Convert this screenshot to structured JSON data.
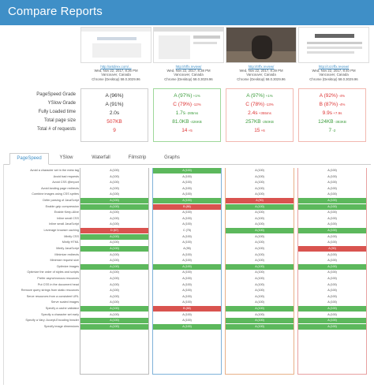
{
  "header": {
    "title": "Compare Reports"
  },
  "reports": [
    {
      "link": "http://artdirex.com/...",
      "date": "Wed, Nov 22, 2017, 8:36 PM",
      "location": "Vancouver, Canada",
      "browser": "Chrome (Desktop) 58.0.3029.96"
    },
    {
      "link": "http://trffx.review/",
      "date": "Wed, Nov 22, 2017, 8:38 PM",
      "location": "Vancouver, Canada",
      "browser": "Chrome (Desktop) 58.0.3029.96"
    },
    {
      "link": "http://trffx.review/",
      "date": "Wed, Nov 22, 2017, 8:39 PM",
      "location": "Vancouver, Canada",
      "browser": "Chrome (Desktop) 58.0.3029.96"
    },
    {
      "link": "http://c4.trffx.review/",
      "date": "Wed, Nov 22, 2017, 8:40 PM",
      "location": "Vancouver, Canada",
      "browser": "Chrome (Desktop) 58.0.3029.96"
    }
  ],
  "summary": {
    "labels": [
      "PageSpeed Grade",
      "YSlow Grade",
      "Fully Loaded time",
      "Total page size",
      "Total # of requests"
    ],
    "columns": [
      [
        {
          "v": "A (96%)",
          "d": ""
        },
        {
          "v": "A (91%)",
          "d": ""
        },
        {
          "v": "2.0s",
          "d": ""
        },
        {
          "v": "507KB",
          "d": ""
        },
        {
          "v": "9",
          "d": ""
        }
      ],
      [
        {
          "v": "A (97%)",
          "d": "+1%",
          "c": "dg"
        },
        {
          "v": "C (79%)",
          "d": "-12%",
          "c": "dr"
        },
        {
          "v": "1.7s",
          "d": "-285ms",
          "c": "dg"
        },
        {
          "v": "81.0KB",
          "d": "-426KB",
          "c": "dg"
        },
        {
          "v": "14",
          "d": "+5",
          "c": "dr"
        }
      ],
      [
        {
          "v": "A (97%)",
          "d": "+1%",
          "c": "dg"
        },
        {
          "v": "C (78%)",
          "d": "-13%",
          "c": "dr"
        },
        {
          "v": "2.4s",
          "d": "+355ms",
          "c": "dr"
        },
        {
          "v": "257KB",
          "d": "-250KB",
          "c": "dg"
        },
        {
          "v": "15",
          "d": "+6",
          "c": "dr"
        }
      ],
      [
        {
          "v": "A (92%)",
          "d": "-4%",
          "c": "dr"
        },
        {
          "v": "B (87%)",
          "d": "-4%",
          "c": "dr"
        },
        {
          "v": "9.9s",
          "d": "+7.9s",
          "c": "dr"
        },
        {
          "v": "124KB",
          "d": "-383KB",
          "c": "dg"
        },
        {
          "v": "7",
          "d": "-2",
          "c": "dg"
        }
      ]
    ]
  },
  "tabs": [
    {
      "label": "PageSpeed"
    },
    {
      "label": "YSlow"
    },
    {
      "label": "Waterfall"
    },
    {
      "label": "Filmstrip"
    },
    {
      "label": "Graphs"
    }
  ],
  "rules": [
    {
      "label": "Avoid a character set in the meta tag",
      "cells": [
        [
          "A (100)",
          "n"
        ],
        [
          "A (100)",
          "g"
        ],
        [
          "A (100)",
          "n"
        ],
        [
          "A (100)",
          "n"
        ]
      ]
    },
    {
      "label": "Avoid bad requests",
      "cells": [
        [
          "A (100)",
          "n"
        ],
        [
          "A (100)",
          "n"
        ],
        [
          "A (100)",
          "n"
        ],
        [
          "A (100)",
          "n"
        ]
      ]
    },
    {
      "label": "Avoid CSS @import",
      "cells": [
        [
          "A (100)",
          "n"
        ],
        [
          "A (100)",
          "n"
        ],
        [
          "A (100)",
          "n"
        ],
        [
          "A (100)",
          "n"
        ]
      ]
    },
    {
      "label": "Avoid landing page redirects",
      "cells": [
        [
          "A (100)",
          "n"
        ],
        [
          "A (100)",
          "n"
        ],
        [
          "A (100)",
          "n"
        ],
        [
          "A (100)",
          "n"
        ]
      ]
    },
    {
      "label": "Combine images using CSS sprites",
      "cells": [
        [
          "A (100)",
          "n"
        ],
        [
          "A (100)",
          "n"
        ],
        [
          "A (100)",
          "n"
        ],
        [
          "A (100)",
          "n"
        ]
      ]
    },
    {
      "label": "Defer parsing of JavaScript",
      "cells": [
        [
          "A (100)",
          "g"
        ],
        [
          "A (100)",
          "g"
        ],
        [
          "A (90)",
          "r"
        ],
        [
          "A (100)",
          "g"
        ]
      ]
    },
    {
      "label": "Enable gzip compression",
      "cells": [
        [
          "A (100)",
          "g"
        ],
        [
          "B (86)",
          "r"
        ],
        [
          "A (100)",
          "g"
        ],
        [
          "A (100)",
          "g"
        ]
      ]
    },
    {
      "label": "Enable Keep-Alive",
      "cells": [
        [
          "A (100)",
          "n"
        ],
        [
          "A (100)",
          "n"
        ],
        [
          "A (100)",
          "n"
        ],
        [
          "A (100)",
          "n"
        ]
      ]
    },
    {
      "label": "Inline small CSS",
      "cells": [
        [
          "A (100)",
          "n"
        ],
        [
          "A (100)",
          "n"
        ],
        [
          "A (100)",
          "n"
        ],
        [
          "A (100)",
          "n"
        ]
      ]
    },
    {
      "label": "Inline small JavaScript",
      "cells": [
        [
          "A (100)",
          "n"
        ],
        [
          "A (100)",
          "n"
        ],
        [
          "A (100)",
          "n"
        ],
        [
          "A (100)",
          "n"
        ]
      ]
    },
    {
      "label": "Leverage browser caching",
      "cells": [
        [
          "D (67)",
          "r"
        ],
        [
          "C (75)",
          "n"
        ],
        [
          "A (100)",
          "g"
        ],
        [
          "A (100)",
          "g"
        ]
      ]
    },
    {
      "label": "Minify CSS",
      "cells": [
        [
          "A (100)",
          "g"
        ],
        [
          "A (100)",
          "n"
        ],
        [
          "A (100)",
          "n"
        ],
        [
          "A (100)",
          "n"
        ]
      ]
    },
    {
      "label": "Minify HTML",
      "cells": [
        [
          "A (100)",
          "n"
        ],
        [
          "A (100)",
          "n"
        ],
        [
          "A (100)",
          "n"
        ],
        [
          "A (100)",
          "n"
        ]
      ]
    },
    {
      "label": "Minify JavaScript",
      "cells": [
        [
          "A (100)",
          "g"
        ],
        [
          "A (95)",
          "n"
        ],
        [
          "A (100)",
          "n"
        ],
        [
          "A (90)",
          "r"
        ]
      ]
    },
    {
      "label": "Minimize redirects",
      "cells": [
        [
          "A (100)",
          "n"
        ],
        [
          "A (100)",
          "n"
        ],
        [
          "A (100)",
          "n"
        ],
        [
          "A (100)",
          "n"
        ]
      ]
    },
    {
      "label": "Minimize request size",
      "cells": [
        [
          "A (100)",
          "n"
        ],
        [
          "A (100)",
          "n"
        ],
        [
          "A (100)",
          "n"
        ],
        [
          "A (100)",
          "n"
        ]
      ]
    },
    {
      "label": "Optimize images",
      "cells": [
        [
          "A (100)",
          "g"
        ],
        [
          "A (100)",
          "g"
        ],
        [
          "A (100)",
          "g"
        ],
        [
          "A (100)",
          "g"
        ]
      ]
    },
    {
      "label": "Optimize the order of styles and scripts",
      "cells": [
        [
          "A (100)",
          "n"
        ],
        [
          "A (100)",
          "n"
        ],
        [
          "A (100)",
          "n"
        ],
        [
          "A (100)",
          "n"
        ]
      ]
    },
    {
      "label": "Prefer asynchronous resources",
      "cells": [
        [
          "A (100)",
          "n"
        ],
        [
          "A (100)",
          "n"
        ],
        [
          "A (100)",
          "n"
        ],
        [
          "A (100)",
          "n"
        ]
      ]
    },
    {
      "label": "Put CSS in the document head",
      "cells": [
        [
          "A (100)",
          "n"
        ],
        [
          "A (100)",
          "n"
        ],
        [
          "A (100)",
          "n"
        ],
        [
          "A (100)",
          "n"
        ]
      ]
    },
    {
      "label": "Remove query strings from static resources",
      "cells": [
        [
          "A (100)",
          "n"
        ],
        [
          "A (100)",
          "n"
        ],
        [
          "A (100)",
          "n"
        ],
        [
          "A (100)",
          "n"
        ]
      ]
    },
    {
      "label": "Serve resources from a consistent URL",
      "cells": [
        [
          "A (100)",
          "n"
        ],
        [
          "A (100)",
          "n"
        ],
        [
          "A (100)",
          "n"
        ],
        [
          "A (100)",
          "n"
        ]
      ]
    },
    {
      "label": "Serve scaled images",
      "cells": [
        [
          "A (100)",
          "n"
        ],
        [
          "A (100)",
          "n"
        ],
        [
          "A (100)",
          "n"
        ],
        [
          "A (100)",
          "n"
        ]
      ]
    },
    {
      "label": "Specify a cache validator",
      "cells": [
        [
          "A (100)",
          "g"
        ],
        [
          "B (88)",
          "r"
        ],
        [
          "A (100)",
          "g"
        ],
        [
          "A (100)",
          "g"
        ]
      ]
    },
    {
      "label": "Specify a character set early",
      "cells": [
        [
          "A (100)",
          "n"
        ],
        [
          "A (100)",
          "n"
        ],
        [
          "A (100)",
          "n"
        ],
        [
          "A (100)",
          "n"
        ]
      ]
    },
    {
      "label": "Specify a Vary: Accept-Encoding header",
      "cells": [
        [
          "A (100)",
          "g"
        ],
        [
          "A (100)",
          "n"
        ],
        [
          "A (100)",
          "g"
        ],
        [
          "A (100)",
          "g"
        ]
      ]
    },
    {
      "label": "Specify image dimensions",
      "cells": [
        [
          "A (100)",
          "g"
        ],
        [
          "A (100)",
          "g"
        ],
        [
          "A (100)",
          "g"
        ],
        [
          "A (100)",
          "g"
        ]
      ]
    }
  ]
}
